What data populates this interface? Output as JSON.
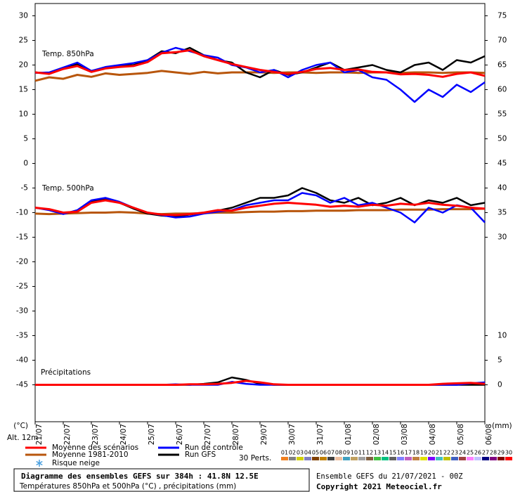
{
  "chart_data": {
    "type": "ensemble",
    "x_unit_label": "(°C)",
    "y2_unit_label": "(mm)",
    "altitude_label": "Alt. 12m",
    "panel_labels": {
      "t850": "Temp. 850hPa",
      "t500": "Temp. 500hPa",
      "precip": "Précipitations"
    },
    "x": [
      0,
      12,
      24,
      36,
      48,
      60,
      72,
      84,
      96,
      108,
      120,
      132,
      144,
      156,
      168,
      180,
      192,
      204,
      216,
      228,
      240,
      252,
      264,
      276,
      288,
      300,
      312,
      324,
      336,
      348,
      360,
      372,
      384
    ],
    "xlim": [
      0,
      384
    ],
    "xticks": [
      {
        "value": 0,
        "label": "21/07"
      },
      {
        "value": 24,
        "label": "22/07"
      },
      {
        "value": 48,
        "label": "23/07"
      },
      {
        "value": 72,
        "label": "24/07"
      },
      {
        "value": 96,
        "label": "25/07"
      },
      {
        "value": 120,
        "label": "26/07"
      },
      {
        "value": 144,
        "label": "27/07"
      },
      {
        "value": 168,
        "label": "28/07"
      },
      {
        "value": 192,
        "label": "29/07"
      },
      {
        "value": 216,
        "label": "30/07"
      },
      {
        "value": 240,
        "label": "31/07"
      },
      {
        "value": 264,
        "label": "01/08"
      },
      {
        "value": 288,
        "label": "02/08"
      },
      {
        "value": 312,
        "label": "03/08"
      },
      {
        "value": 336,
        "label": "04/08"
      },
      {
        "value": 360,
        "label": "05/08"
      },
      {
        "value": 384,
        "label": "06/08"
      }
    ],
    "ylim": [
      -52.5,
      32.5
    ],
    "yticks": [
      30,
      25,
      20,
      15,
      10,
      5,
      0,
      -5,
      -10,
      -15,
      -20,
      -25,
      -30,
      -35,
      -40,
      -45
    ],
    "y2lim": [
      -7.5,
      77.5
    ],
    "y2ticks": [
      75,
      70,
      65,
      60,
      55,
      50,
      45,
      40,
      35,
      30,
      10,
      5,
      0
    ],
    "grid": false,
    "series": [
      {
        "name": "Moyenne des scénarios",
        "color": "#ff0000",
        "t850": [
          18.5,
          18.2,
          19.2,
          19.8,
          18.6,
          19.3,
          19.6,
          19.8,
          20.6,
          22.4,
          22.6,
          23,
          21.8,
          21,
          20.2,
          19.6,
          19,
          18.6,
          18.2,
          18.6,
          19.2,
          19.4,
          19,
          19.1,
          18.6,
          18.5,
          18.1,
          18.2,
          18,
          17.6,
          18.2,
          18.5,
          17.8
        ],
        "t500": [
          -9,
          -9.3,
          -10,
          -9.8,
          -8,
          -7.5,
          -8,
          -9,
          -10,
          -10.4,
          -10.5,
          -10.3,
          -10,
          -9.5,
          -9.6,
          -9,
          -8.6,
          -8.2,
          -8,
          -8.2,
          -8.4,
          -8.8,
          -8.6,
          -8.8,
          -8.4,
          -8.6,
          -8.2,
          -8.4,
          -8,
          -8.4,
          -8.6,
          -9,
          -9.2
        ],
        "precip": [
          0,
          0,
          0,
          0,
          0,
          0,
          0,
          0,
          0,
          0,
          0,
          0.1,
          0.1,
          0.2,
          0.4,
          0.8,
          0.5,
          0.1,
          0,
          0,
          0,
          0,
          0,
          0,
          0,
          0,
          0,
          0,
          0,
          0.2,
          0.3,
          0.4,
          0.2
        ]
      },
      {
        "name": "Moyenne 1981-2010",
        "color": "#b8560c",
        "t850": [
          16.8,
          17.5,
          17.2,
          18,
          17.6,
          18.3,
          18,
          18.2,
          18.4,
          18.8,
          18.5,
          18.2,
          18.6,
          18.3,
          18.5,
          18.5,
          18.5,
          18.4,
          18.5,
          18.5,
          18.4,
          18.5,
          18.5,
          18.4,
          18.5,
          18.5,
          18.4,
          18.5,
          18.5,
          18.4,
          18.5,
          18.5,
          18.4
        ],
        "t500": [
          -10.2,
          -10.3,
          -10.2,
          -10.1,
          -10,
          -10,
          -9.9,
          -10,
          -10.2,
          -10.3,
          -10.2,
          -10.2,
          -10.1,
          -10,
          -10,
          -9.9,
          -9.8,
          -9.8,
          -9.7,
          -9.7,
          -9.6,
          -9.6,
          -9.6,
          -9.5,
          -9.5,
          -9.5,
          -9.4,
          -9.4,
          -9.4,
          -9.3,
          -9.3,
          -9.3,
          -9.2
        ]
      },
      {
        "name": "Run de contrôle",
        "color": "#0000ff",
        "t850": [
          18.4,
          18.5,
          19.5,
          20.5,
          18.8,
          19.6,
          20,
          20.4,
          21,
          22.5,
          23.5,
          22.8,
          22,
          21.5,
          20,
          19.5,
          18.5,
          19,
          17.5,
          19,
          20,
          20.5,
          18.5,
          19,
          17.5,
          17,
          15,
          12.5,
          15,
          13.5,
          16,
          14.5,
          16.5
        ],
        "t500": [
          -9,
          -9.5,
          -10.3,
          -9.5,
          -7.5,
          -7,
          -7.8,
          -9,
          -10,
          -10.5,
          -11,
          -10.8,
          -10.2,
          -9.8,
          -9.5,
          -8.5,
          -8,
          -7.5,
          -7.5,
          -6,
          -6.5,
          -8,
          -7,
          -8.5,
          -8,
          -9,
          -10,
          -12,
          -9,
          -10,
          -8.5,
          -9,
          -12
        ],
        "precip": [
          0,
          0,
          0,
          0,
          0,
          0,
          0,
          0,
          0,
          0,
          0.1,
          0,
          0,
          0,
          0.6,
          0.2,
          0,
          0,
          0,
          0,
          0,
          0,
          0,
          0,
          0,
          0,
          0,
          0,
          0,
          0,
          0,
          0.3,
          0.5
        ]
      },
      {
        "name": "Run GFS",
        "color": "#000000",
        "t850": [
          18.5,
          18.3,
          19.4,
          20.2,
          18.8,
          19.5,
          19.8,
          20,
          21,
          22.8,
          22.4,
          23.5,
          22,
          21,
          20.5,
          18.5,
          17.5,
          19,
          18,
          18.5,
          19.5,
          20.5,
          19,
          19.5,
          20,
          19,
          18.5,
          20,
          20.5,
          19,
          21,
          20.5,
          21.8
        ],
        "t500": [
          -9,
          -9.4,
          -10.2,
          -9.7,
          -7.8,
          -7.2,
          -8,
          -9.2,
          -10.2,
          -10.6,
          -10.8,
          -10.4,
          -10,
          -9.6,
          -9,
          -8,
          -7,
          -7,
          -6.5,
          -5,
          -6,
          -7.5,
          -8,
          -7,
          -8.5,
          -8,
          -7,
          -8.5,
          -7.5,
          -8,
          -7,
          -8.5,
          -8
        ],
        "precip": [
          0,
          0,
          0,
          0,
          0,
          0,
          0,
          0,
          0,
          0,
          0,
          0,
          0.2,
          0.5,
          1.5,
          1,
          0.2,
          0,
          0,
          0,
          0,
          0,
          0,
          0,
          0,
          0,
          0,
          0,
          0,
          0,
          0,
          0,
          0
        ]
      }
    ],
    "snow_risk_label": "Risque neige",
    "perturbations": {
      "label": "30 Perts.",
      "members": [
        {
          "name": "01",
          "color": "#f08020"
        },
        {
          "name": "02",
          "color": "#808080"
        },
        {
          "name": "03",
          "color": "#d0d000"
        },
        {
          "name": "04",
          "color": "#8080c0"
        },
        {
          "name": "05",
          "color": "#804000"
        },
        {
          "name": "06",
          "color": "#c08000"
        },
        {
          "name": "07",
          "color": "#404040"
        },
        {
          "name": "08",
          "color": "#f0c0a0"
        },
        {
          "name": "09",
          "color": "#40a0c0"
        },
        {
          "name": "10",
          "color": "#c0a060"
        },
        {
          "name": "11",
          "color": "#a0a0a0"
        },
        {
          "name": "12",
          "color": "#806040"
        },
        {
          "name": "13",
          "color": "#40c040"
        },
        {
          "name": "14",
          "color": "#00c080"
        },
        {
          "name": "15",
          "color": "#606060"
        },
        {
          "name": "16",
          "color": "#8080ff"
        },
        {
          "name": "17",
          "color": "#c060c0"
        },
        {
          "name": "18",
          "color": "#c08040"
        },
        {
          "name": "19",
          "color": "#e0e000"
        },
        {
          "name": "20",
          "color": "#8000ff"
        },
        {
          "name": "21",
          "color": "#40c0c0"
        },
        {
          "name": "22",
          "color": "#c0c000"
        },
        {
          "name": "23",
          "color": "#4060c0"
        },
        {
          "name": "24",
          "color": "#a04040"
        },
        {
          "name": "25",
          "color": "#ff80ff"
        },
        {
          "name": "26",
          "color": "#c0c0ff"
        },
        {
          "name": "27",
          "color": "#000080"
        },
        {
          "name": "28",
          "color": "#800080"
        },
        {
          "name": "29",
          "color": "#800000"
        },
        {
          "name": "30",
          "color": "#ff0000"
        }
      ]
    },
    "title": "Diagramme des ensembles GEFS sur 384h : 41.8N 12.5E",
    "subtitle": "Températures 850hPa et 500hPa (°C) , précipitations (mm)",
    "run_label": "Ensemble GEFS du 21/07/2021 - 00Z",
    "copyright": "Copyright 2021 Meteociel.fr"
  }
}
